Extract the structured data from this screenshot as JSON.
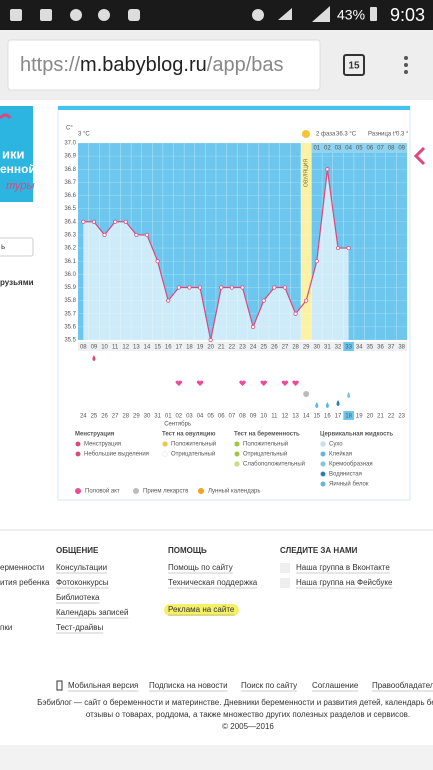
{
  "status_bar": {
    "battery": "43%",
    "time": "9:03"
  },
  "browser": {
    "url_scheme": "https://",
    "url_host": "m.babyblog.ru",
    "url_path": "/app/bas",
    "tabs": "15"
  },
  "sidebar": {
    "banner": [
      "ики",
      "енной",
      "туры"
    ],
    "input": "ь",
    "link": "рузьями"
  },
  "chart_data": {
    "type": "line",
    "y_unit": "C°",
    "left_value": "3 °C",
    "phase_label": "2 фаза",
    "phase_value": "36.3 °C",
    "diff_label": "Разница t°",
    "diff_value": "0.3 °",
    "ovulation_label": "ОВУЛЯЦИЯ",
    "categories": [
      "08",
      "09",
      "10",
      "11",
      "12",
      "13",
      "14",
      "15",
      "16",
      "17",
      "18",
      "19",
      "20",
      "21",
      "22",
      "23",
      "24",
      "25",
      "26",
      "27",
      "28",
      "29",
      "30",
      "31",
      "32",
      "33",
      "34",
      "35",
      "36",
      "37",
      "38"
    ],
    "values": [
      36.4,
      36.4,
      36.3,
      36.4,
      36.4,
      36.3,
      36.3,
      36.1,
      35.8,
      35.9,
      35.9,
      35.9,
      35.5,
      35.9,
      35.9,
      35.9,
      35.6,
      35.8,
      35.9,
      35.9,
      35.7,
      35.8,
      36.1,
      36.8,
      36.2,
      36.2,
      null,
      null,
      null,
      null,
      null
    ],
    "color": "#e0457b",
    "phase_days": [
      "01",
      "02",
      "03",
      "04",
      "05",
      "06",
      "07",
      "08",
      "09"
    ],
    "dates": [
      "24",
      "25",
      "26",
      "27",
      "28",
      "29",
      "30",
      "31",
      "01",
      "02",
      "03",
      "04",
      "05",
      "06",
      "07",
      "08",
      "09",
      "10",
      "11",
      "12",
      "13",
      "14",
      "15",
      "16",
      "17",
      "18",
      "19",
      "20",
      "21",
      "22",
      "23"
    ],
    "month": "Сентябрь",
    "ylim": [
      35.5,
      37.0
    ],
    "yticks": [
      35.5,
      35.6,
      35.7,
      35.8,
      35.9,
      {
        "value": 36,
        "label": "36.0"
      },
      36.1,
      36.2,
      36.3,
      36.4,
      36.5,
      36.6,
      36.7,
      36.8,
      36.9,
      {
        "value": 37,
        "label": "37.0"
      }
    ],
    "legend": [
      {
        "title": "Менструация",
        "items": [
          "Менструация",
          "Небольшие выделения"
        ]
      },
      {
        "title": "Тест на овуляцию",
        "items": [
          "Положительный",
          "Отрицательный"
        ]
      },
      {
        "title": "Тест на беременность",
        "items": [
          "Положительный",
          "Отрицательный",
          "Слабоположительный"
        ]
      },
      {
        "title": "Цервикальная жидкость",
        "items": [
          "Сухо",
          "Клейкая",
          "Кремообразная",
          "Водянистая",
          "Яичный белок"
        ]
      }
    ],
    "legend_bottom": [
      "Половой акт",
      "Прием лекарств",
      "Лунный календарь"
    ]
  },
  "footer": {
    "left_partial": [
      "ерменности",
      "ития ребенка",
      "",
      "",
      "пки"
    ],
    "columns": [
      {
        "title": "ОБЩЕНИЕ",
        "links": [
          "Консультации",
          "Фотоконкурсы",
          "Библиотека",
          "Календарь записей",
          "Тест-драйвы"
        ]
      },
      {
        "title": "ПОМОЩЬ",
        "links": [
          "Помощь по сайту",
          "Техническая поддержка",
          "",
          "Реклама на сайте"
        ]
      },
      {
        "title": "СЛЕДИТЕ ЗА НАМИ",
        "links": [
          "Наша группа в Вконтакте",
          "Наша группа на Фейсбуке"
        ]
      }
    ],
    "bottom_links": [
      "Мобильная версия",
      "Подписка на новости",
      "Поиск по сайту",
      "Соглашение",
      "Правообладателя"
    ],
    "about": [
      "Бэбиблог — сайт о беременности и материнстве. Дневники беременности и развития детей, календарь беремен",
      "отзывы о товарах, роддома, а также множество других полезных разделов и сервисов.",
      "© 2005—2016"
    ]
  }
}
